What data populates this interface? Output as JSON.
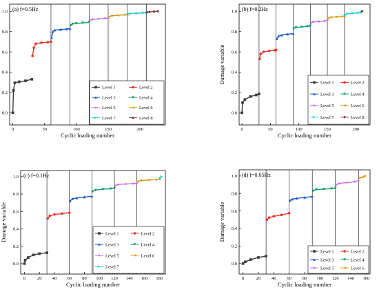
{
  "chart_data": [
    {
      "type": "scatter",
      "title": "(a) f=0.5Hz",
      "xlabel": "Cyclic loading number",
      "ylabel": "Damage variable",
      "xlim": [
        -5,
        240
      ],
      "ylim": [
        -0.12,
        1.07
      ],
      "xticks": [
        0,
        50,
        100,
        150,
        200
      ],
      "yticks": [
        0.0,
        0.2,
        0.4,
        0.6,
        0.8,
        1.0
      ],
      "level_boundaries": [
        60,
        90,
        120,
        150,
        180,
        210
      ],
      "legend_position": "lower-right",
      "series": [
        {
          "name": "Level 1",
          "values": [
            [
              0,
              0.0
            ],
            [
              1,
              0.22
            ],
            [
              3,
              0.295
            ],
            [
              10,
              0.305
            ],
            [
              20,
              0.315
            ],
            [
              30,
              0.33
            ]
          ]
        },
        {
          "name": "Level 2",
          "values": [
            [
              31,
              0.56
            ],
            [
              33,
              0.64
            ],
            [
              36,
              0.68
            ],
            [
              45,
              0.69
            ],
            [
              55,
              0.695
            ],
            [
              60,
              0.7
            ]
          ]
        },
        {
          "name": "Level 3",
          "values": [
            [
              61,
              0.74
            ],
            [
              63,
              0.8
            ],
            [
              66,
              0.815
            ],
            [
              75,
              0.82
            ],
            [
              85,
              0.825
            ],
            [
              90,
              0.83
            ]
          ]
        },
        {
          "name": "Level 4",
          "values": [
            [
              91,
              0.86
            ],
            [
              94,
              0.875
            ],
            [
              100,
              0.88
            ],
            [
              110,
              0.885
            ],
            [
              120,
              0.89
            ]
          ]
        },
        {
          "name": "Level 5",
          "values": [
            [
              121,
              0.91
            ],
            [
              125,
              0.92
            ],
            [
              135,
              0.925
            ],
            [
              145,
              0.93
            ],
            [
              150,
              0.93
            ]
          ]
        },
        {
          "name": "Level 6",
          "values": [
            [
              151,
              0.945
            ],
            [
              155,
              0.955
            ],
            [
              165,
              0.96
            ],
            [
              175,
              0.965
            ],
            [
              180,
              0.965
            ]
          ]
        },
        {
          "name": "Level 7",
          "values": [
            [
              181,
              0.975
            ],
            [
              185,
              0.978
            ],
            [
              195,
              0.98
            ],
            [
              205,
              0.985
            ],
            [
              210,
              0.985
            ]
          ]
        },
        {
          "name": "Level 8",
          "values": [
            [
              211,
              0.99
            ],
            [
              215,
              0.993
            ],
            [
              222,
              0.997
            ],
            [
              228,
              1.0
            ]
          ]
        }
      ]
    },
    {
      "type": "scatter",
      "title": "(b) f=0.2Hz",
      "xlabel": "Cyclic loading number",
      "ylabel": "Damage variable",
      "xlim": [
        -5,
        225
      ],
      "ylim": [
        -0.12,
        1.07
      ],
      "xticks": [
        0,
        50,
        100,
        150,
        200
      ],
      "yticks": [
        0.0,
        0.2,
        0.4,
        0.6,
        0.8,
        1.0
      ],
      "level_boundaries": [
        30,
        60,
        90,
        120,
        150,
        180
      ],
      "legend_position": "lower-right",
      "series": [
        {
          "name": "Level 1",
          "values": [
            [
              0,
              0.0
            ],
            [
              1,
              0.1
            ],
            [
              5,
              0.13
            ],
            [
              15,
              0.16
            ],
            [
              25,
              0.175
            ],
            [
              30,
              0.185
            ]
          ]
        },
        {
          "name": "Level 2",
          "values": [
            [
              31,
              0.53
            ],
            [
              33,
              0.58
            ],
            [
              38,
              0.6
            ],
            [
              48,
              0.61
            ],
            [
              58,
              0.615
            ],
            [
              60,
              0.62
            ]
          ]
        },
        {
          "name": "Level 3",
          "values": [
            [
              61,
              0.73
            ],
            [
              64,
              0.755
            ],
            [
              70,
              0.765
            ],
            [
              80,
              0.775
            ],
            [
              90,
              0.78
            ]
          ]
        },
        {
          "name": "Level 4",
          "values": [
            [
              91,
              0.83
            ],
            [
              95,
              0.84
            ],
            [
              105,
              0.845
            ],
            [
              115,
              0.85
            ],
            [
              120,
              0.855
            ]
          ]
        },
        {
          "name": "Level 5",
          "values": [
            [
              121,
              0.885
            ],
            [
              125,
              0.895
            ],
            [
              135,
              0.9
            ],
            [
              145,
              0.905
            ],
            [
              150,
              0.91
            ]
          ]
        },
        {
          "name": "Level 6",
          "values": [
            [
              151,
              0.93
            ],
            [
              155,
              0.94
            ],
            [
              165,
              0.945
            ],
            [
              175,
              0.95
            ],
            [
              180,
              0.95
            ]
          ]
        },
        {
          "name": "Level 7",
          "values": [
            [
              181,
              0.965
            ],
            [
              185,
              0.975
            ],
            [
              195,
              0.98
            ],
            [
              205,
              0.985
            ],
            [
              210,
              0.99
            ]
          ]
        },
        {
          "name": "Level 8",
          "values": [
            [
              211,
              1.0
            ]
          ]
        }
      ]
    },
    {
      "type": "scatter",
      "title": "(c) f=0.1Hz",
      "xlabel": "Cyclic loading number",
      "ylabel": "Damage variable",
      "xlim": [
        -5,
        188
      ],
      "ylim": [
        -0.12,
        1.07
      ],
      "xticks": [
        0,
        20,
        40,
        60,
        80,
        100,
        120,
        140,
        160,
        180
      ],
      "yticks": [
        0.0,
        0.2,
        0.4,
        0.6,
        0.8,
        1.0
      ],
      "level_boundaries": [
        30,
        60,
        90,
        120,
        150
      ],
      "legend_position": "lower-right",
      "series": [
        {
          "name": "Level 1",
          "values": [
            [
              0,
              0.0
            ],
            [
              1,
              0.04
            ],
            [
              5,
              0.07
            ],
            [
              12,
              0.1
            ],
            [
              20,
              0.115
            ],
            [
              30,
              0.125
            ]
          ]
        },
        {
          "name": "Level 2",
          "values": [
            [
              31,
              0.52
            ],
            [
              34,
              0.55
            ],
            [
              40,
              0.565
            ],
            [
              50,
              0.575
            ],
            [
              60,
              0.585
            ]
          ]
        },
        {
          "name": "Level 3",
          "values": [
            [
              61,
              0.72
            ],
            [
              64,
              0.745
            ],
            [
              70,
              0.755
            ],
            [
              80,
              0.765
            ],
            [
              90,
              0.775
            ]
          ]
        },
        {
          "name": "Level 4",
          "values": [
            [
              91,
              0.83
            ],
            [
              95,
              0.845
            ],
            [
              105,
              0.855
            ],
            [
              115,
              0.86
            ],
            [
              120,
              0.865
            ]
          ]
        },
        {
          "name": "Level 5",
          "values": [
            [
              121,
              0.895
            ],
            [
              125,
              0.91
            ],
            [
              135,
              0.915
            ],
            [
              145,
              0.92
            ],
            [
              150,
              0.925
            ]
          ]
        },
        {
          "name": "Level 6",
          "values": [
            [
              151,
              0.945
            ],
            [
              155,
              0.955
            ],
            [
              165,
              0.96
            ],
            [
              175,
              0.965
            ],
            [
              180,
              0.97
            ]
          ]
        },
        {
          "name": "Level 7",
          "values": [
            [
              181,
              0.985
            ],
            [
              183,
              1.0
            ]
          ]
        }
      ]
    },
    {
      "type": "scatter",
      "title": "(d) f=0.05Hz",
      "xlabel": "Cyclic loading number",
      "ylabel": "Damage variable",
      "xlim": [
        -5,
        165
      ],
      "ylim": [
        -0.12,
        1.07
      ],
      "xticks": [
        0,
        20,
        40,
        60,
        80,
        100,
        120,
        140,
        160
      ],
      "yticks": [
        0.0,
        0.2,
        0.4,
        0.6,
        0.8,
        1.0
      ],
      "level_boundaries": [
        30,
        60,
        90,
        120,
        150
      ],
      "legend_position": "lower-right",
      "series": [
        {
          "name": "Level 1",
          "values": [
            [
              0,
              0.0
            ],
            [
              3,
              0.02
            ],
            [
              10,
              0.045
            ],
            [
              20,
              0.07
            ],
            [
              30,
              0.085
            ]
          ]
        },
        {
          "name": "Level 2",
          "values": [
            [
              31,
              0.5
            ],
            [
              34,
              0.525
            ],
            [
              40,
              0.54
            ],
            [
              50,
              0.555
            ],
            [
              60,
              0.575
            ]
          ]
        },
        {
          "name": "Level 3",
          "values": [
            [
              61,
              0.72
            ],
            [
              64,
              0.735
            ],
            [
              70,
              0.745
            ],
            [
              80,
              0.755
            ],
            [
              90,
              0.765
            ]
          ]
        },
        {
          "name": "Level 4",
          "values": [
            [
              91,
              0.83
            ],
            [
              95,
              0.845
            ],
            [
              105,
              0.85
            ],
            [
              115,
              0.855
            ],
            [
              120,
              0.86
            ]
          ]
        },
        {
          "name": "Level 5",
          "values": [
            [
              121,
              0.9
            ],
            [
              125,
              0.915
            ],
            [
              135,
              0.925
            ],
            [
              145,
              0.935
            ],
            [
              150,
              0.945
            ]
          ]
        },
        {
          "name": "Level 6",
          "values": [
            [
              151,
              0.975
            ],
            [
              155,
              0.985
            ],
            [
              158,
              1.0
            ]
          ]
        }
      ]
    }
  ],
  "series_styles": [
    {
      "color": "#3a3a3a",
      "marker": "square"
    },
    {
      "color": "#e8322a",
      "marker": "circle"
    },
    {
      "color": "#1b58c4",
      "marker": "triangle-up"
    },
    {
      "color": "#149a6a",
      "marker": "triangle-down"
    },
    {
      "color": "#c46ee0",
      "marker": "diamond"
    },
    {
      "color": "#d99a10",
      "marker": "triangle-left"
    },
    {
      "color": "#1ccbd0",
      "marker": "triangle-right"
    },
    {
      "color": "#7a3a3a",
      "marker": "hexagon"
    }
  ]
}
